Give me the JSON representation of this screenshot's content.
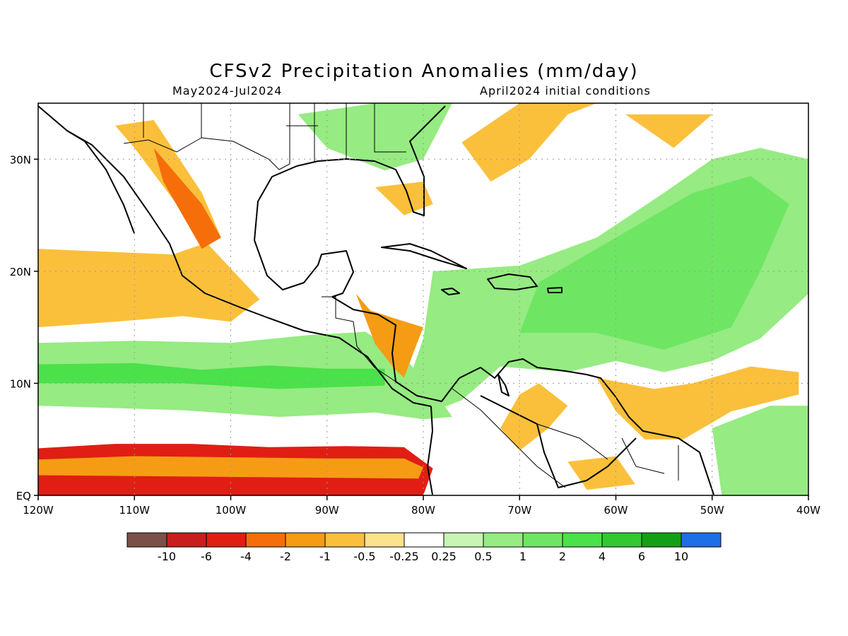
{
  "title": "CFSv2 Precipitation Anomalies (mm/day)",
  "subtitle_left": "May2024-Jul2024",
  "subtitle_right": "April2024 initial conditions",
  "map": {
    "lon_range": [
      -120,
      -40
    ],
    "lat_range": [
      0,
      35
    ],
    "y_ticks": [
      {
        "label": "30N",
        "lat": 30
      },
      {
        "label": "20N",
        "lat": 20
      },
      {
        "label": "10N",
        "lat": 10
      },
      {
        "label": "EQ",
        "lat": 0
      }
    ],
    "x_ticks": [
      {
        "label": "120W",
        "lon": -120
      },
      {
        "label": "110W",
        "lon": -110
      },
      {
        "label": "100W",
        "lon": -100
      },
      {
        "label": "90W",
        "lon": -90
      },
      {
        "label": "80W",
        "lon": -80
      },
      {
        "label": "70W",
        "lon": -70
      },
      {
        "label": "60W",
        "lon": -60
      },
      {
        "label": "50W",
        "lon": -50
      },
      {
        "label": "40W",
        "lon": -40
      }
    ]
  },
  "colorbar": {
    "colors": [
      "#7a5048",
      "#c81e1e",
      "#e01e14",
      "#f56e0a",
      "#f59c14",
      "#fac03c",
      "#fde28c",
      "#ffffff",
      "#c8f5b4",
      "#96eb82",
      "#6ee664",
      "#4be14b",
      "#32c832",
      "#14a014",
      "#1e6ee6"
    ],
    "labels": [
      "-10",
      "-6",
      "-4",
      "-2",
      "-1",
      "-0.5",
      "-0.25",
      "0.25",
      "0.5",
      "1",
      "2",
      "4",
      "6",
      "10"
    ]
  },
  "anomaly_regions": [
    {
      "level": 2,
      "points": [
        [
          -120,
          4.2
        ],
        [
          -112,
          4.6
        ],
        [
          -104,
          4.6
        ],
        [
          -96,
          4.3
        ],
        [
          -88,
          4.4
        ],
        [
          -82,
          4.3
        ],
        [
          -79,
          2.4
        ],
        [
          -80,
          0
        ],
        [
          -120,
          0
        ]
      ]
    },
    {
      "level": 4,
      "points": [
        [
          -120,
          3.2
        ],
        [
          -110,
          3.5
        ],
        [
          -100,
          3.4
        ],
        [
          -90,
          3.3
        ],
        [
          -82,
          3.3
        ],
        [
          -80,
          2.5
        ],
        [
          -80.5,
          1.5
        ],
        [
          -120,
          1.8
        ]
      ]
    },
    {
      "level": 2,
      "points": [
        [
          -120,
          17.5
        ],
        [
          -114,
          17.6
        ],
        [
          -106,
          17.2
        ],
        [
          -101,
          16.0
        ],
        [
          -104,
          19.8
        ],
        [
          -112,
          21
        ],
        [
          -120,
          21
        ]
      ]
    },
    {
      "level": 5,
      "points": [
        [
          -120,
          15
        ],
        [
          -112,
          15.5
        ],
        [
          -105,
          16
        ],
        [
          -100,
          15.5
        ],
        [
          -97,
          17.5
        ],
        [
          -103,
          23
        ],
        [
          -110,
          31
        ],
        [
          -112,
          33
        ],
        [
          -108,
          33.5
        ],
        [
          -103,
          27
        ],
        [
          -101,
          23
        ],
        [
          -106,
          21.5
        ],
        [
          -120,
          22
        ]
      ]
    },
    {
      "level": 3,
      "points": [
        [
          -108,
          31
        ],
        [
          -103,
          26
        ],
        [
          -101,
          23
        ],
        [
          -103,
          22
        ],
        [
          -107,
          28
        ]
      ]
    },
    {
      "level": 9,
      "points": [
        [
          -120,
          13.6
        ],
        [
          -110,
          13.8
        ],
        [
          -100,
          13.6
        ],
        [
          -92,
          14.3
        ],
        [
          -86,
          14.6
        ],
        [
          -82,
          12.3
        ],
        [
          -79,
          9.5
        ],
        [
          -77,
          7.0
        ],
        [
          -80,
          6.8
        ],
        [
          -85,
          7.4
        ],
        [
          -95,
          7.0
        ],
        [
          -105,
          7.6
        ],
        [
          -120,
          8
        ]
      ]
    },
    {
      "level": 11,
      "points": [
        [
          -120,
          11.7
        ],
        [
          -110,
          11.8
        ],
        [
          -103,
          11.2
        ],
        [
          -96,
          11.6
        ],
        [
          -90,
          11.3
        ],
        [
          -84,
          11.3
        ],
        [
          -84,
          9.8
        ],
        [
          -95,
          9.5
        ],
        [
          -105,
          10
        ],
        [
          -120,
          10
        ]
      ]
    },
    {
      "level": 4,
      "points": [
        [
          -80,
          15
        ],
        [
          -83,
          15.8
        ],
        [
          -85.5,
          16.5
        ],
        [
          -87,
          18
        ],
        [
          -85,
          13.5
        ],
        [
          -83,
          11.3
        ],
        [
          -82,
          10.5
        ],
        [
          -81,
          12.8
        ]
      ]
    },
    {
      "level": 9,
      "points": [
        [
          -79,
          20
        ],
        [
          -70,
          20.5
        ],
        [
          -62,
          23
        ],
        [
          -55,
          27
        ],
        [
          -50,
          30
        ],
        [
          -45,
          31
        ],
        [
          -40,
          30
        ],
        [
          -40,
          18
        ],
        [
          -45,
          14
        ],
        [
          -50,
          12
        ],
        [
          -55,
          11
        ],
        [
          -60,
          12
        ],
        [
          -65,
          11
        ],
        [
          -72,
          11.5
        ],
        [
          -76,
          8.5
        ],
        [
          -79,
          7.5
        ],
        [
          -82,
          9
        ],
        [
          -80,
          14
        ]
      ]
    },
    {
      "level": 10,
      "points": [
        [
          -68,
          19
        ],
        [
          -60,
          23
        ],
        [
          -52,
          27
        ],
        [
          -46,
          28.5
        ],
        [
          -42,
          26
        ],
        [
          -45,
          20
        ],
        [
          -48,
          15
        ],
        [
          -55,
          13
        ],
        [
          -62,
          14.5
        ],
        [
          -70,
          14.5
        ]
      ]
    },
    {
      "level": 9,
      "points": [
        [
          -93,
          34
        ],
        [
          -85,
          35
        ],
        [
          -77,
          35
        ],
        [
          -80,
          30
        ],
        [
          -84,
          29
        ],
        [
          -90,
          31
        ]
      ]
    },
    {
      "level": 5,
      "points": [
        [
          -68,
          10
        ],
        [
          -65,
          8
        ],
        [
          -67,
          6
        ],
        [
          -70,
          4
        ],
        [
          -72,
          6
        ],
        [
          -70,
          9
        ]
      ]
    },
    {
      "level": 5,
      "points": [
        [
          -62,
          10.5
        ],
        [
          -56,
          9.5
        ],
        [
          -52,
          10
        ],
        [
          -46,
          11.5
        ],
        [
          -41,
          11
        ],
        [
          -41,
          9
        ],
        [
          -48,
          7.5
        ],
        [
          -53,
          5
        ],
        [
          -57,
          5
        ],
        [
          -60,
          7.5
        ]
      ]
    },
    {
      "level": 5,
      "points": [
        [
          -65,
          3
        ],
        [
          -60,
          3.5
        ],
        [
          -58,
          1
        ],
        [
          -63,
          0.5
        ]
      ]
    },
    {
      "level": 5,
      "points": [
        [
          -76,
          31.5
        ],
        [
          -73,
          28
        ],
        [
          -69,
          30
        ],
        [
          -65,
          34
        ],
        [
          -62,
          35
        ],
        [
          -70,
          35
        ]
      ]
    },
    {
      "level": 5,
      "points": [
        [
          -59,
          34
        ],
        [
          -54,
          31
        ],
        [
          -50,
          34
        ]
      ]
    },
    {
      "level": 5,
      "points": [
        [
          -85,
          27.5
        ],
        [
          -82,
          25
        ],
        [
          -79,
          26
        ],
        [
          -80,
          28
        ]
      ]
    },
    {
      "level": 9,
      "points": [
        [
          -50,
          6
        ],
        [
          -44,
          8
        ],
        [
          -40,
          8
        ],
        [
          -40,
          0
        ],
        [
          -49,
          0
        ]
      ]
    }
  ]
}
